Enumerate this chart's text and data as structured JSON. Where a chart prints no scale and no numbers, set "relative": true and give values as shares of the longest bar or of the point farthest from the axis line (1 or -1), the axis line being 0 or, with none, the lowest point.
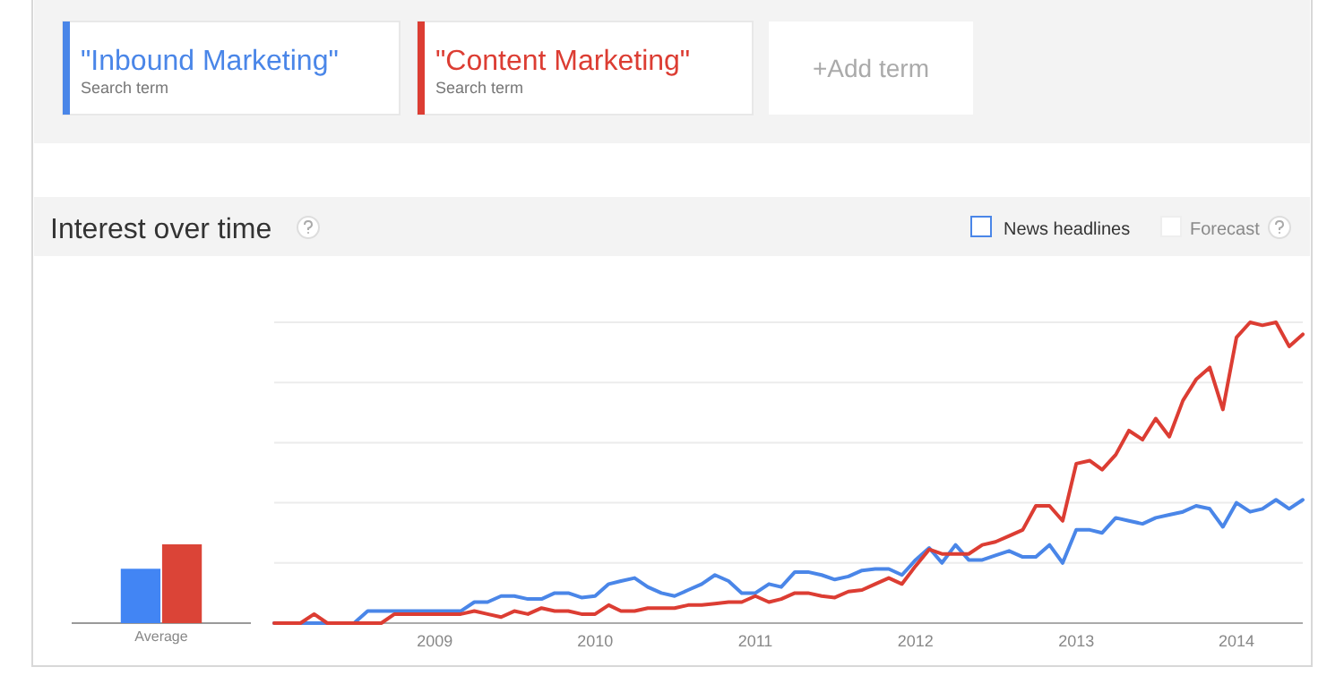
{
  "chart_data": [
    {
      "type": "bar",
      "relative": true,
      "categories": [
        "Average"
      ],
      "series": [
        {
          "color": "#4285f4",
          "values": [
            0.69
          ]
        },
        {
          "color": "#db4437",
          "values": [
            1
          ]
        }
      ]
    },
    {
      "type": "line",
      "relative": true,
      "title": "Interest over time",
      "legend": "top left",
      "grid": "y",
      "annotations": [
        "Search term",
        "Search term",
        "+Add term",
        "News headlines",
        "Forecast"
      ],
      "x": [
        "2008-01",
        "2008-02",
        "2008-03",
        "2008-04",
        "2008-05",
        "2008-06",
        "2008-07",
        "2008-08",
        "2008-09",
        "2008-10",
        "2008-11",
        "2008-12",
        "2009-01",
        "2009-02",
        "2009-03",
        "2009-04",
        "2009-05",
        "2009-06",
        "2009-07",
        "2009-08",
        "2009-09",
        "2009-10",
        "2009-11",
        "2009-12",
        "2010-01",
        "2010-02",
        "2010-03",
        "2010-04",
        "2010-05",
        "2010-06",
        "2010-07",
        "2010-08",
        "2010-09",
        "2010-10",
        "2010-11",
        "2010-12",
        "2011-01",
        "2011-02",
        "2011-03",
        "2011-04",
        "2011-05",
        "2011-06",
        "2011-07",
        "2011-08",
        "2011-09",
        "2011-10",
        "2011-11",
        "2011-12",
        "2012-01",
        "2012-02",
        "2012-03",
        "2012-04",
        "2012-05",
        "2012-06",
        "2012-07",
        "2012-08",
        "2012-09",
        "2012-10",
        "2012-11",
        "2012-12",
        "2013-01",
        "2013-02",
        "2013-03",
        "2013-04",
        "2013-05",
        "2013-06",
        "2013-07",
        "2013-08",
        "2013-09",
        "2013-10",
        "2013-11",
        "2013-12",
        "2014-01",
        "2014-02",
        "2014-03",
        "2014-04",
        "2014-05",
        "2014-06"
      ],
      "xlim": [
        "2008-01",
        "2014-06"
      ],
      "xticks": [
        "2009",
        "2010",
        "2011",
        "2012",
        "2013",
        "2014"
      ],
      "series": [
        {
          "name": "\"Inbound Marketing\"",
          "color": "#4a86e8",
          "values": [
            0,
            0,
            0,
            0,
            0,
            0,
            0,
            0.04,
            0.04,
            0.04,
            0.04,
            0.04,
            0.04,
            0.04,
            0.04,
            0.07,
            0.07,
            0.09,
            0.09,
            0.08,
            0.08,
            0.1,
            0.1,
            0.085,
            0.09,
            0.13,
            0.14,
            0.15,
            0.12,
            0.1,
            0.09,
            0.11,
            0.13,
            0.16,
            0.14,
            0.1,
            0.1,
            0.13,
            0.12,
            0.17,
            0.17,
            0.16,
            0.145,
            0.155,
            0.175,
            0.18,
            0.18,
            0.16,
            0.21,
            0.25,
            0.2,
            0.26,
            0.21,
            0.21,
            0.225,
            0.24,
            0.22,
            0.22,
            0.26,
            0.2,
            0.31,
            0.31,
            0.3,
            0.35,
            0.34,
            0.33,
            0.35,
            0.36,
            0.37,
            0.39,
            0.38,
            0.32,
            0.4,
            0.37,
            0.38,
            0.41,
            0.38,
            0.41
          ]
        },
        {
          "name": "\"Content Marketing\"",
          "color": "#dc3d33",
          "values": [
            0,
            0,
            0,
            0.03,
            0,
            0,
            0,
            0,
            0,
            0.03,
            0.03,
            0.03,
            0.03,
            0.03,
            0.03,
            0.04,
            0.03,
            0.02,
            0.04,
            0.03,
            0.05,
            0.04,
            0.04,
            0.03,
            0.03,
            0.06,
            0.04,
            0.04,
            0.05,
            0.05,
            0.05,
            0.06,
            0.06,
            0.065,
            0.07,
            0.07,
            0.09,
            0.07,
            0.08,
            0.1,
            0.1,
            0.09,
            0.085,
            0.105,
            0.11,
            0.13,
            0.15,
            0.13,
            0.19,
            0.245,
            0.23,
            0.23,
            0.23,
            0.26,
            0.27,
            0.29,
            0.31,
            0.39,
            0.39,
            0.34,
            0.53,
            0.54,
            0.51,
            0.56,
            0.64,
            0.61,
            0.68,
            0.62,
            0.74,
            0.81,
            0.85,
            0.71,
            0.95,
            1,
            0.99,
            1,
            0.92,
            0.96
          ]
        }
      ]
    }
  ]
}
